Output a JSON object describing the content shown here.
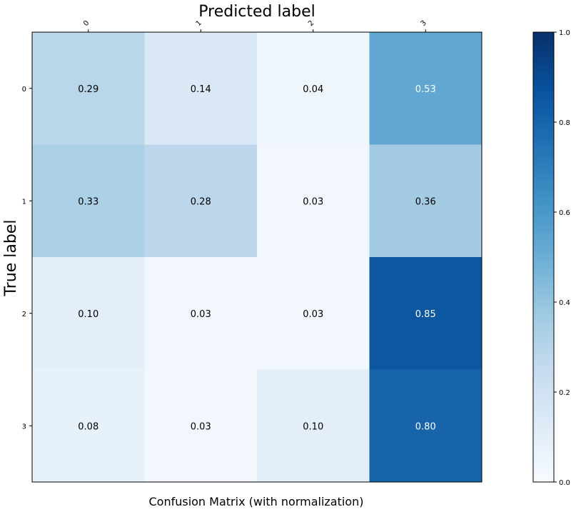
{
  "chart_data": {
    "type": "heatmap",
    "title": "Confusion Matrix (with normalization)",
    "xlabel": "Predicted label",
    "ylabel": "True label",
    "x_categories": [
      "0",
      "1",
      "2",
      "3"
    ],
    "y_categories": [
      "0",
      "1",
      "2",
      "3"
    ],
    "values": [
      [
        0.29,
        0.14,
        0.04,
        0.53
      ],
      [
        0.33,
        0.28,
        0.03,
        0.36
      ],
      [
        0.1,
        0.03,
        0.03,
        0.85
      ],
      [
        0.08,
        0.03,
        0.1,
        0.8
      ]
    ],
    "value_format": "0.00",
    "colormap": "Blues",
    "colormap_stops": [
      "#f7fbff",
      "#deebf7",
      "#c6dbef",
      "#9ecae1",
      "#6baed6",
      "#4292c6",
      "#2171b5",
      "#08519c",
      "#08306b"
    ],
    "text_colors": {
      "dark_cell": "#ffffff",
      "light_cell": "#000000"
    },
    "colorbar": {
      "range": [
        0.0,
        1.0
      ],
      "ticks": [
        "0.0",
        "0.2",
        "0.4",
        "0.6",
        "0.8",
        "1.0"
      ]
    },
    "grid": false
  }
}
